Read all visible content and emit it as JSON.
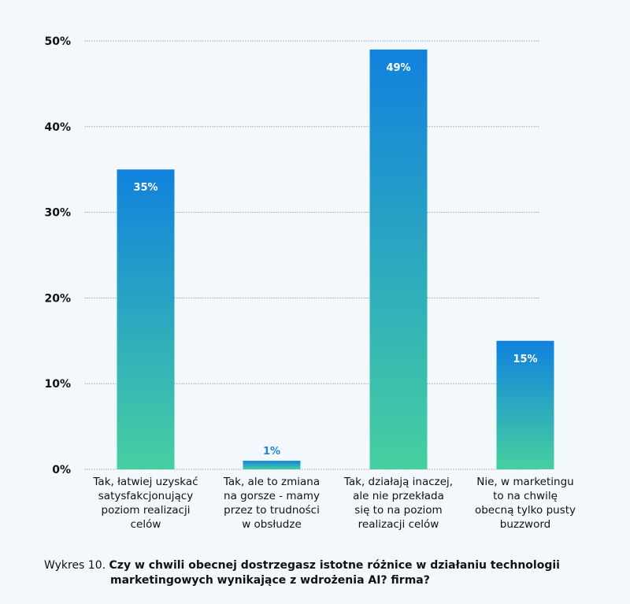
{
  "chart_data": {
    "type": "bar",
    "title": "Czy w chwili obecnej dostrzegasz istotne różnice w działaniu technologii marketingowych wynikające z wdrożenia AI? firma?",
    "caption_prefix": "Wykres 10.",
    "caption_line1": "Czy w chwili obecnej dostrzegasz istotne różnice w działaniu technologii",
    "caption_line2": "marketingowych wynikające z wdrożenia AI? firma?",
    "categories": [
      "Tak, łatwiej uzyskać satysfakcjonujący poziom realizacji celów",
      "Tak, ale to zmiana na gorsze - mamy przez to trudności w obsłudze",
      "Tak, działają inaczej, ale nie przekłada się to na poziom realizacji celów",
      "Nie, w marketingu to na chwilę obecną tylko pusty buzzword"
    ],
    "category_lines": [
      [
        "Tak, łatwiej uzyskać",
        "satysfakcjonujący",
        "poziom realizacji",
        "celów"
      ],
      [
        "Tak, ale to zmiana",
        "na gorsze - mamy",
        "przez to trudności",
        "w obsłudze"
      ],
      [
        "Tak, działają inaczej,",
        "ale nie przekłada",
        "się to na poziom",
        "realizacji celów"
      ],
      [
        "Nie, w marketingu",
        "to na chwilę",
        "obecną tylko pusty",
        "buzzword"
      ]
    ],
    "values": [
      35,
      1,
      49,
      15
    ],
    "value_labels": [
      "35%",
      "1%",
      "49%",
      "15%"
    ],
    "yticks": [
      0,
      10,
      20,
      30,
      40,
      50
    ],
    "ytick_labels": [
      "0%",
      "10%",
      "20%",
      "30%",
      "40%",
      "50%"
    ],
    "ylim": [
      0,
      50
    ],
    "xlabel": "",
    "ylabel": "",
    "grid": true,
    "legend": "none",
    "colors": {
      "bar_top": "#1181de",
      "bar_bottom": "#47cfa0",
      "grid": "#b5b9bd",
      "label_outside": "#1a86d8"
    }
  }
}
